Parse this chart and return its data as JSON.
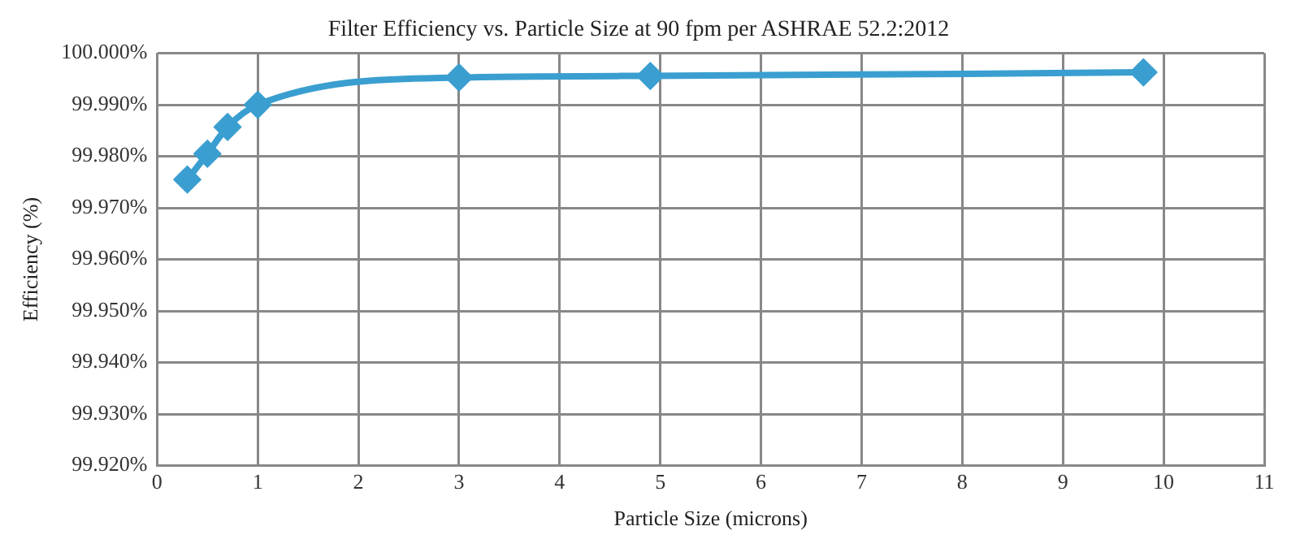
{
  "chart_data": {
    "type": "line",
    "title": "Filter Efficiency vs. Particle Size at 90 fpm per ASHRAE 52.2:2012",
    "xlabel": "Particle Size (microns)",
    "ylabel": "Efficiency (%)",
    "x": [
      0.3,
      0.5,
      0.7,
      1.0,
      3.0,
      4.9,
      9.8
    ],
    "series": [
      {
        "color": "#3a9fd0",
        "values": [
          99.9755,
          99.9805,
          99.9857,
          99.99,
          99.9953,
          99.9956,
          99.9963
        ]
      }
    ],
    "xlim": [
      0,
      11
    ],
    "xticks": [
      0,
      1,
      2,
      3,
      4,
      5,
      6,
      7,
      8,
      9,
      10,
      11
    ],
    "ylim": [
      99.92,
      100
    ],
    "yticks": [
      {
        "value": 99.92,
        "label": "99.920%"
      },
      {
        "value": 99.93,
        "label": "99.930%"
      },
      {
        "value": 99.94,
        "label": "99.940%"
      },
      {
        "value": 99.95,
        "label": "99.950%"
      },
      {
        "value": 99.96,
        "label": "99.960%"
      },
      {
        "value": 99.97,
        "label": "99.970%"
      },
      {
        "value": 99.98,
        "label": "99.980%"
      },
      {
        "value": 99.99,
        "label": "99.990%"
      },
      {
        "value": 100,
        "label": "100.000%"
      }
    ],
    "grid": true,
    "legend": false,
    "marker": "diamond",
    "line_style": "solid"
  }
}
